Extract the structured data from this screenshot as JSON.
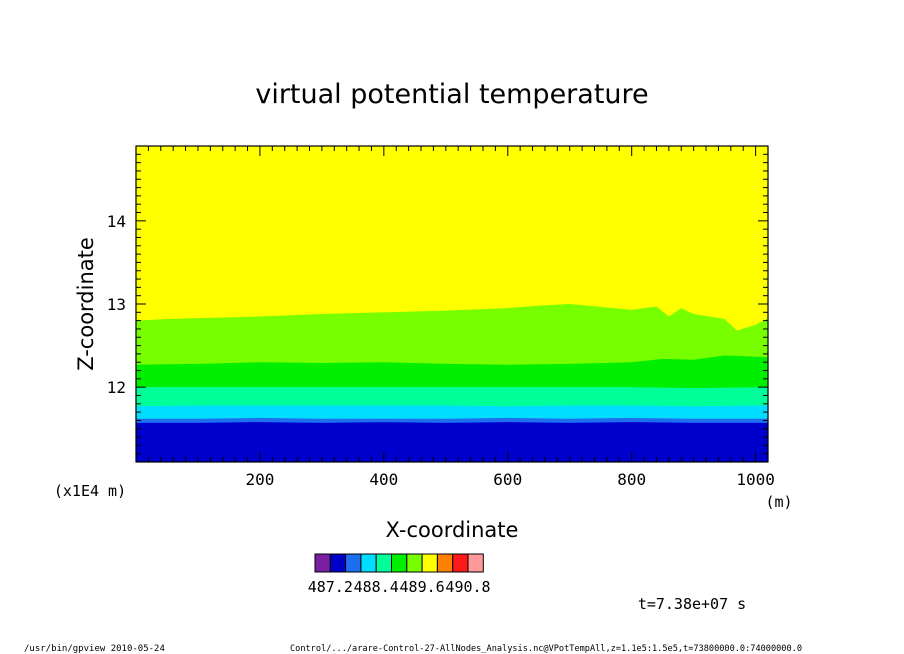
{
  "chart_data": {
    "type": "heatmap",
    "title": "virtual potential temperature",
    "xlabel": "X-coordinate",
    "ylabel": "Z-coordinate",
    "x_unit": "(m)",
    "y_unit": "(x1E4 m)",
    "xlim": [
      0,
      1020
    ],
    "ylim": [
      11.1,
      14.9
    ],
    "x_ticks": [
      {
        "value": 200,
        "label": "200"
      },
      {
        "value": 400,
        "label": "400"
      },
      {
        "value": 600,
        "label": "600"
      },
      {
        "value": 800,
        "label": "800"
      },
      {
        "value": 1000,
        "label": "1000"
      }
    ],
    "y_ticks": [
      {
        "value": 12,
        "label": "12"
      },
      {
        "value": 13,
        "label": "13"
      },
      {
        "value": 14,
        "label": "14"
      }
    ],
    "colors": [
      "#7a1fa2",
      "#0000cc",
      "#1e6ef0",
      "#00ddff",
      "#00ff99",
      "#00ee00",
      "#77ff00",
      "#ffff00",
      "#ff8000",
      "#ff1a1a",
      "#ff9999"
    ],
    "colorbar_labels": [
      "487.2",
      "488.4",
      "489.6",
      "490.8"
    ],
    "bands": [
      {
        "color": "#0000cc",
        "boundary_x": [
          0,
          100,
          200,
          300,
          400,
          500,
          600,
          700,
          800,
          900,
          1020
        ],
        "boundary_y": [
          11.57,
          11.57,
          11.58,
          11.57,
          11.58,
          11.57,
          11.58,
          11.57,
          11.58,
          11.57,
          11.57
        ]
      },
      {
        "color": "#1e6ef0",
        "boundary_x": [
          0,
          100,
          200,
          300,
          400,
          500,
          600,
          700,
          800,
          900,
          1020
        ],
        "boundary_y": [
          11.62,
          11.62,
          11.63,
          11.62,
          11.62,
          11.62,
          11.63,
          11.62,
          11.63,
          11.62,
          11.62
        ]
      },
      {
        "color": "#00ddff",
        "boundary_x": [
          0,
          100,
          200,
          300,
          400,
          500,
          600,
          700,
          800,
          900,
          1020
        ],
        "boundary_y": [
          11.77,
          11.78,
          11.78,
          11.78,
          11.78,
          11.78,
          11.77,
          11.78,
          11.78,
          11.77,
          11.78
        ]
      },
      {
        "color": "#00ff99",
        "boundary_x": [
          0,
          100,
          200,
          300,
          400,
          500,
          600,
          700,
          800,
          900,
          1020
        ],
        "boundary_y": [
          12.0,
          12.0,
          12.0,
          12.0,
          12.0,
          12.0,
          12.0,
          12.0,
          12.0,
          11.99,
          12.0
        ]
      },
      {
        "color": "#00ee00",
        "boundary_x": [
          0,
          100,
          200,
          300,
          400,
          500,
          600,
          700,
          800,
          850,
          900,
          950,
          1020
        ],
        "boundary_y": [
          12.27,
          12.28,
          12.3,
          12.29,
          12.3,
          12.28,
          12.27,
          12.28,
          12.3,
          12.34,
          12.33,
          12.38,
          12.36
        ]
      },
      {
        "color": "#77ff00",
        "boundary_x": [
          0,
          50,
          100,
          200,
          300,
          400,
          500,
          600,
          650,
          700,
          800,
          840,
          860,
          880,
          900,
          950,
          970,
          1000,
          1020
        ],
        "boundary_y": [
          12.8,
          12.82,
          12.83,
          12.85,
          12.88,
          12.9,
          12.92,
          12.95,
          12.98,
          13.0,
          12.93,
          12.97,
          12.85,
          12.95,
          12.88,
          12.82,
          12.68,
          12.75,
          12.83
        ]
      },
      {
        "color": "#ffff00",
        "boundary_x": [
          0,
          1020
        ],
        "boundary_y": [
          14.9,
          14.9
        ]
      }
    ],
    "annotation": "t=7.38e+07 s"
  },
  "footer": {
    "left": "/usr/bin/gpview  2010-05-24",
    "right": "Control/.../arare-Control-27-AllNodes_Analysis.nc@VPotTempAll,z=1.1e5:1.5e5,t=73800000.0:74000000.0"
  }
}
